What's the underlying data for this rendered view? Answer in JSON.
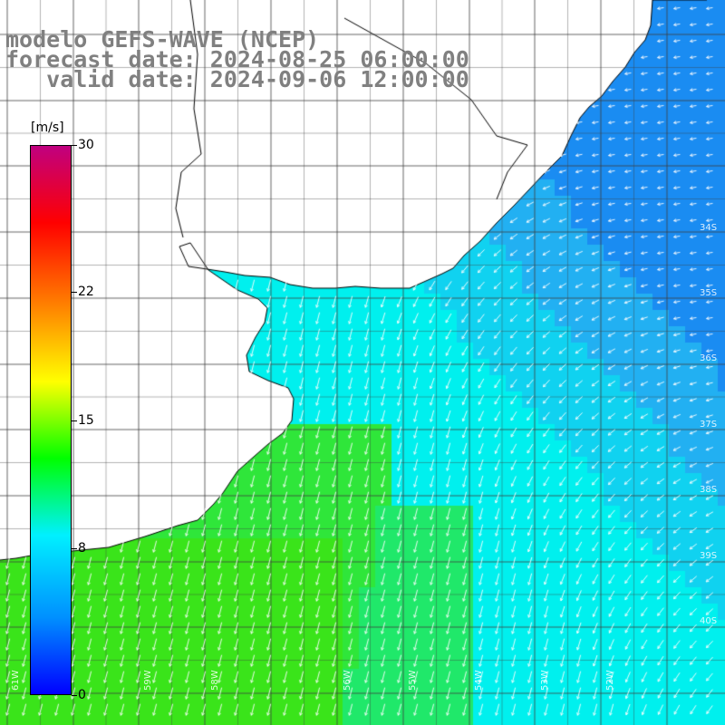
{
  "header": {
    "line1": "modelo GEFS-WAVE (NCEP)",
    "line2": "forecast date: 2024-08-25 06:00:00",
    "line3": "   valid date: 2024-09-06 12:00:00"
  },
  "colorbar": {
    "unit_label": "[m/s]",
    "ticks": [
      {
        "label": "30",
        "value": 30
      },
      {
        "label": "22",
        "value": 22
      },
      {
        "label": "15",
        "value": 15
      },
      {
        "label": "8",
        "value": 8
      },
      {
        "label": "0",
        "value": 0
      }
    ],
    "range": [
      0,
      30
    ],
    "colors": [
      "#0000ff",
      "#0090ff",
      "#00f0ff",
      "#00ff00",
      "#ffff00",
      "#ff8000",
      "#ff0000",
      "#c00080"
    ]
  },
  "map": {
    "lat_labels": [
      "34S",
      "35S",
      "36S",
      "37S",
      "38S",
      "39S",
      "40S"
    ],
    "lon_labels": [
      "61W",
      "59W",
      "58W",
      "56W",
      "55W",
      "54W",
      "53W",
      "52W"
    ],
    "wind_direction": "southwest-flowing",
    "field_colors": {
      "green": "#33e619",
      "cyan": "#00f0ee",
      "blue": "#1a98ef",
      "land": "#ffffff",
      "coast": "#000000",
      "grid": "#404040",
      "arrow": "#ffffff"
    }
  }
}
